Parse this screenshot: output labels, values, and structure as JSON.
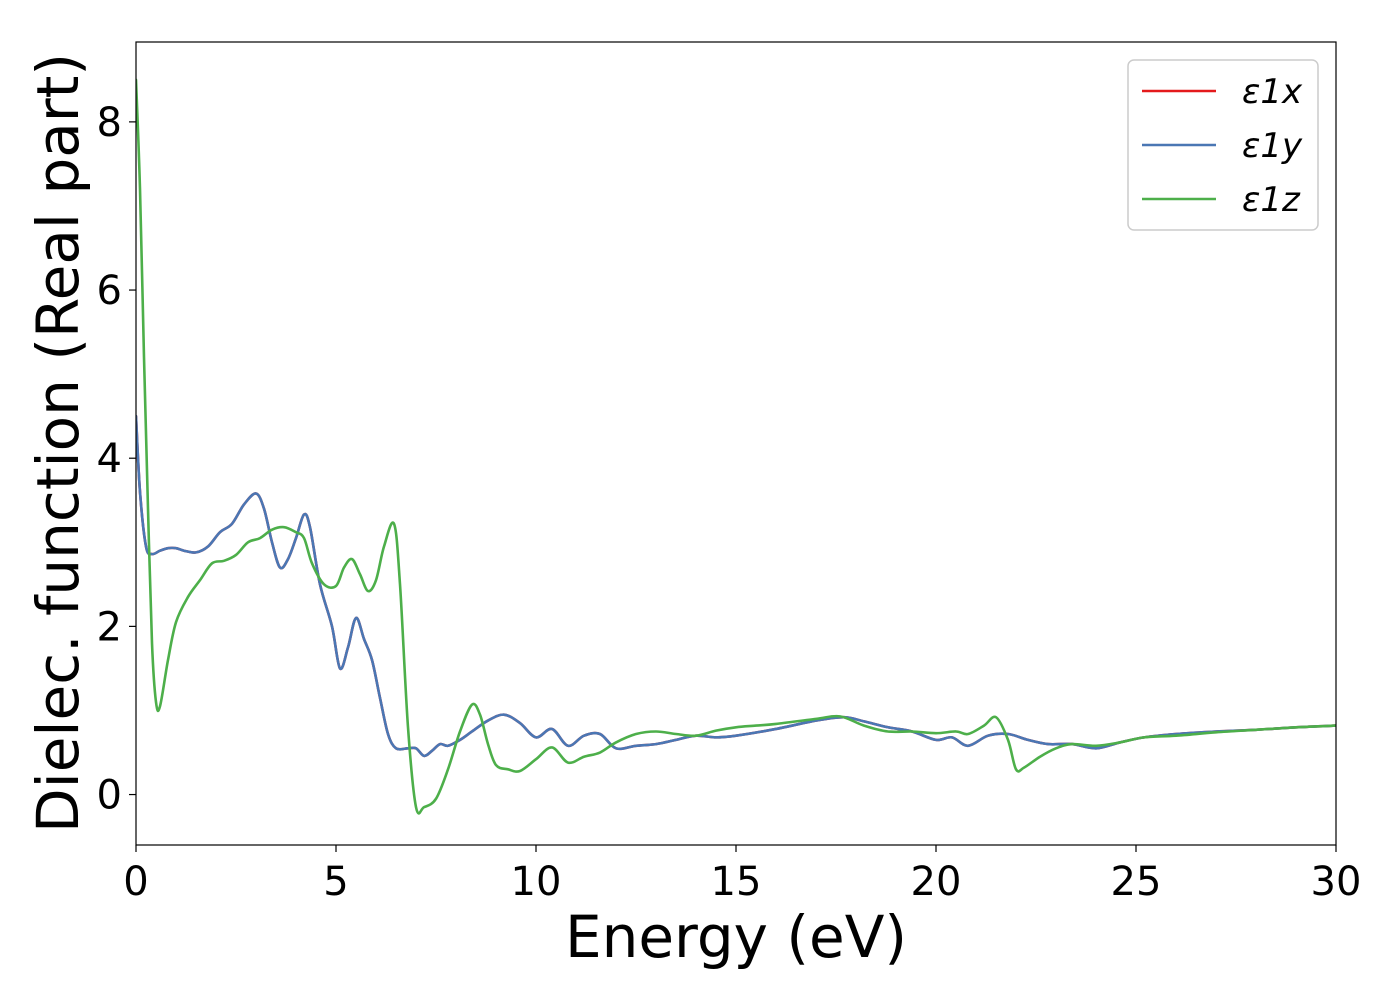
{
  "chart_data": {
    "type": "line",
    "xlabel": "Energy (eV)",
    "ylabel": "Dielec. function (Real part)",
    "xlim": [
      0,
      30
    ],
    "ylim": [
      -0.6,
      8.95
    ],
    "xticks": [
      0,
      5,
      10,
      15,
      20,
      25,
      30
    ],
    "yticks": [
      0,
      2,
      4,
      6,
      8
    ],
    "legend_position": "top-right",
    "grid": false,
    "series": [
      {
        "name": "ε1x",
        "color": "#e41a1c",
        "x": [
          0,
          0.1,
          0.25,
          0.4,
          0.6,
          0.8,
          1.0,
          1.2,
          1.5,
          1.8,
          2.1,
          2.4,
          2.7,
          3.0,
          3.2,
          3.4,
          3.6,
          3.8,
          4.0,
          4.2,
          4.35,
          4.6,
          4.9,
          5.1,
          5.3,
          5.5,
          5.7,
          5.9,
          6.1,
          6.3,
          6.5,
          6.8,
          7.0,
          7.2,
          7.4,
          7.6,
          7.8,
          8.1,
          8.4,
          8.8,
          9.2,
          9.6,
          10.0,
          10.4,
          10.8,
          11.2,
          11.6,
          12.0,
          12.5,
          13.0,
          13.5,
          14.0,
          14.5,
          15.0,
          16.0,
          17.0,
          17.7,
          18.2,
          18.8,
          19.4,
          20.0,
          20.4,
          20.8,
          21.3,
          21.8,
          22.3,
          22.8,
          23.4,
          24.0,
          24.6,
          25.2,
          26.0,
          27.0,
          28.0,
          29.0,
          30.0
        ],
        "y": [
          4.5,
          3.6,
          2.95,
          2.86,
          2.9,
          2.93,
          2.93,
          2.9,
          2.88,
          2.95,
          3.12,
          3.22,
          3.45,
          3.58,
          3.4,
          3.0,
          2.7,
          2.8,
          3.05,
          3.33,
          3.18,
          2.5,
          2.0,
          1.5,
          1.75,
          2.1,
          1.85,
          1.6,
          1.15,
          0.72,
          0.55,
          0.55,
          0.55,
          0.46,
          0.52,
          0.6,
          0.58,
          0.65,
          0.75,
          0.88,
          0.95,
          0.85,
          0.68,
          0.78,
          0.58,
          0.7,
          0.72,
          0.55,
          0.58,
          0.6,
          0.65,
          0.7,
          0.68,
          0.7,
          0.78,
          0.88,
          0.92,
          0.87,
          0.8,
          0.75,
          0.65,
          0.68,
          0.58,
          0.7,
          0.72,
          0.65,
          0.6,
          0.6,
          0.55,
          0.62,
          0.68,
          0.72,
          0.75,
          0.77,
          0.8,
          0.82
        ]
      },
      {
        "name": "ε1y",
        "color": "#4a77b4",
        "x": [
          0,
          0.1,
          0.25,
          0.4,
          0.6,
          0.8,
          1.0,
          1.2,
          1.5,
          1.8,
          2.1,
          2.4,
          2.7,
          3.0,
          3.2,
          3.4,
          3.6,
          3.8,
          4.0,
          4.2,
          4.35,
          4.6,
          4.9,
          5.1,
          5.3,
          5.5,
          5.7,
          5.9,
          6.1,
          6.3,
          6.5,
          6.8,
          7.0,
          7.2,
          7.4,
          7.6,
          7.8,
          8.1,
          8.4,
          8.8,
          9.2,
          9.6,
          10.0,
          10.4,
          10.8,
          11.2,
          11.6,
          12.0,
          12.5,
          13.0,
          13.5,
          14.0,
          14.5,
          15.0,
          16.0,
          17.0,
          17.7,
          18.2,
          18.8,
          19.4,
          20.0,
          20.4,
          20.8,
          21.3,
          21.8,
          22.3,
          22.8,
          23.4,
          24.0,
          24.6,
          25.2,
          26.0,
          27.0,
          28.0,
          29.0,
          30.0
        ],
        "y": [
          4.5,
          3.6,
          2.95,
          2.86,
          2.9,
          2.93,
          2.93,
          2.9,
          2.88,
          2.95,
          3.12,
          3.22,
          3.45,
          3.58,
          3.4,
          3.0,
          2.7,
          2.8,
          3.05,
          3.33,
          3.18,
          2.5,
          2.0,
          1.5,
          1.75,
          2.1,
          1.85,
          1.6,
          1.15,
          0.72,
          0.55,
          0.55,
          0.55,
          0.46,
          0.52,
          0.6,
          0.58,
          0.65,
          0.75,
          0.88,
          0.95,
          0.85,
          0.68,
          0.78,
          0.58,
          0.7,
          0.72,
          0.55,
          0.58,
          0.6,
          0.65,
          0.7,
          0.68,
          0.7,
          0.78,
          0.88,
          0.92,
          0.87,
          0.8,
          0.75,
          0.65,
          0.68,
          0.58,
          0.7,
          0.72,
          0.65,
          0.6,
          0.6,
          0.55,
          0.62,
          0.68,
          0.72,
          0.75,
          0.77,
          0.8,
          0.82
        ]
      },
      {
        "name": "ε1z",
        "color": "#4daf4a",
        "x": [
          0,
          0.1,
          0.2,
          0.3,
          0.4,
          0.5,
          0.6,
          0.8,
          1.0,
          1.3,
          1.6,
          1.9,
          2.2,
          2.5,
          2.8,
          3.1,
          3.4,
          3.7,
          4.0,
          4.2,
          4.4,
          4.7,
          5.0,
          5.2,
          5.4,
          5.6,
          5.8,
          6.0,
          6.2,
          6.45,
          6.6,
          6.8,
          7.0,
          7.2,
          7.5,
          7.8,
          8.1,
          8.4,
          8.6,
          8.8,
          9.0,
          9.3,
          9.6,
          10.0,
          10.4,
          10.8,
          11.2,
          11.6,
          12.0,
          12.5,
          13.0,
          13.5,
          14.0,
          14.5,
          15.0,
          15.5,
          16.0,
          17.0,
          17.6,
          18.2,
          18.8,
          19.4,
          20.0,
          20.5,
          20.8,
          21.2,
          21.5,
          21.8,
          22.0,
          22.2,
          22.6,
          23.0,
          23.4,
          24.0,
          24.6,
          25.2,
          26.0,
          27.0,
          28.0,
          29.0,
          30.0
        ],
        "y": [
          8.5,
          7.2,
          5.2,
          3.4,
          1.8,
          1.1,
          1.05,
          1.6,
          2.05,
          2.35,
          2.55,
          2.75,
          2.78,
          2.85,
          3.0,
          3.05,
          3.15,
          3.18,
          3.12,
          3.05,
          2.75,
          2.5,
          2.48,
          2.7,
          2.8,
          2.62,
          2.42,
          2.55,
          2.95,
          3.22,
          2.5,
          0.8,
          -0.15,
          -0.15,
          -0.05,
          0.3,
          0.75,
          1.07,
          0.95,
          0.6,
          0.35,
          0.3,
          0.28,
          0.42,
          0.56,
          0.38,
          0.45,
          0.5,
          0.62,
          0.72,
          0.75,
          0.72,
          0.7,
          0.76,
          0.8,
          0.82,
          0.84,
          0.9,
          0.93,
          0.82,
          0.75,
          0.75,
          0.73,
          0.75,
          0.72,
          0.82,
          0.92,
          0.65,
          0.3,
          0.32,
          0.45,
          0.55,
          0.6,
          0.58,
          0.62,
          0.68,
          0.7,
          0.74,
          0.77,
          0.8,
          0.82
        ]
      }
    ]
  }
}
